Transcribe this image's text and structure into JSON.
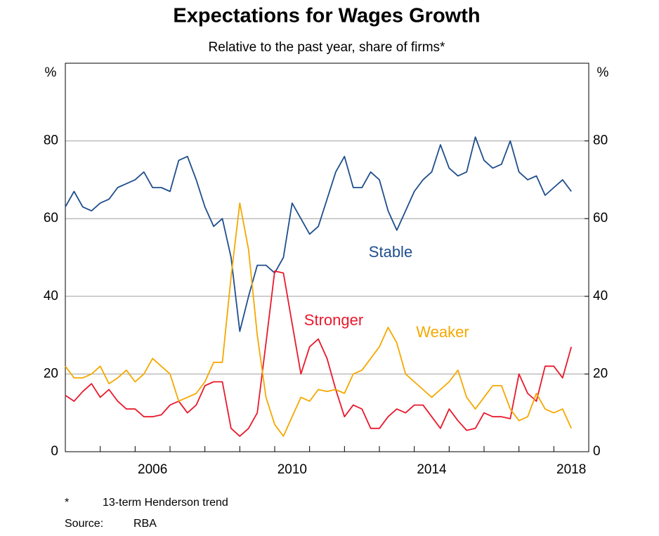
{
  "chart_data": {
    "type": "line",
    "title": "Expectations for Wages Growth",
    "subtitle": "Relative to the past year, share of firms*",
    "y_unit": "%",
    "y2_unit": "%",
    "x": [
      2004,
      2004.25,
      2004.5,
      2004.75,
      2005,
      2005.25,
      2005.5,
      2005.75,
      2006,
      2006.25,
      2006.5,
      2006.75,
      2007,
      2007.25,
      2007.5,
      2007.75,
      2008,
      2008.25,
      2008.5,
      2008.75,
      2009,
      2009.25,
      2009.5,
      2009.75,
      2010,
      2010.25,
      2010.5,
      2010.75,
      2011,
      2011.25,
      2011.5,
      2011.75,
      2012,
      2012.25,
      2012.5,
      2012.75,
      2013,
      2013.25,
      2013.5,
      2013.75,
      2014,
      2014.25,
      2014.5,
      2014.75,
      2015,
      2015.25,
      2015.5,
      2015.75,
      2016,
      2016.25,
      2016.5,
      2016.75,
      2017,
      2017.25,
      2017.5,
      2017.75,
      2018,
      2018.25,
      2018.5
    ],
    "series": [
      {
        "name": "Stable",
        "color": "#1f4e8c",
        "values": [
          63,
          67,
          63,
          62,
          64,
          65,
          68,
          69,
          70,
          72,
          68,
          68,
          67,
          75,
          76,
          70,
          63,
          58,
          60,
          50,
          31,
          40,
          48,
          48,
          46,
          50,
          64,
          60,
          56,
          58,
          65,
          72,
          76,
          68,
          68,
          72,
          70,
          62,
          57,
          62,
          67,
          70,
          72,
          79,
          73,
          71,
          72,
          81,
          75,
          73,
          74,
          80,
          72,
          70,
          71,
          66,
          68,
          70,
          67
        ]
      },
      {
        "name": "Stronger",
        "color": "#e8192c",
        "values": [
          14.5,
          13,
          15.5,
          17.5,
          14,
          16,
          13,
          11,
          11,
          9,
          9,
          9.5,
          12,
          13,
          10,
          12,
          17,
          18,
          18,
          6,
          4,
          6,
          10,
          28,
          46.5,
          46,
          33,
          20,
          27,
          29,
          24,
          16,
          9,
          12,
          11,
          6,
          6,
          9,
          11,
          10,
          12,
          12,
          9,
          6,
          11,
          8,
          5.5,
          6,
          10,
          9,
          9,
          8.5,
          20,
          15,
          13,
          22,
          22,
          19,
          27
        ]
      },
      {
        "name": "Weaker",
        "color": "#f5a800",
        "values": [
          22,
          19,
          19,
          20,
          22,
          17.5,
          19,
          21,
          18,
          20,
          24,
          22,
          20,
          13,
          14,
          15,
          18,
          23,
          23,
          45,
          64,
          52,
          30,
          14,
          7,
          4,
          9,
          14,
          13,
          16,
          15.5,
          16,
          15,
          20,
          21,
          24,
          27,
          32,
          28,
          20,
          18,
          16,
          14,
          16,
          18,
          21,
          14,
          11,
          14,
          17,
          17,
          11,
          8,
          9,
          15,
          11,
          10,
          11,
          6
        ]
      }
    ],
    "xlim": [
      2004,
      2019
    ],
    "xticks": [
      {
        "value": 2006.5,
        "label": "2006"
      },
      {
        "value": 2010.5,
        "label": "2010"
      },
      {
        "value": 2014.5,
        "label": "2014"
      },
      {
        "value": 2018.5,
        "label": "2018"
      }
    ],
    "xminor": [
      2005,
      2006,
      2007,
      2008,
      2009,
      2010,
      2011,
      2012,
      2013,
      2014,
      2015,
      2016,
      2017,
      2018
    ],
    "ylim": [
      0,
      100
    ],
    "yticks": [
      0,
      20,
      40,
      60,
      80
    ],
    "y2lim": [
      0,
      100
    ],
    "y2ticks": [
      0,
      20,
      40,
      60,
      80
    ],
    "grid": true,
    "notes": [
      "*",
      "13-term Henderson trend"
    ],
    "source_label": "Source:",
    "source": "RBA"
  }
}
